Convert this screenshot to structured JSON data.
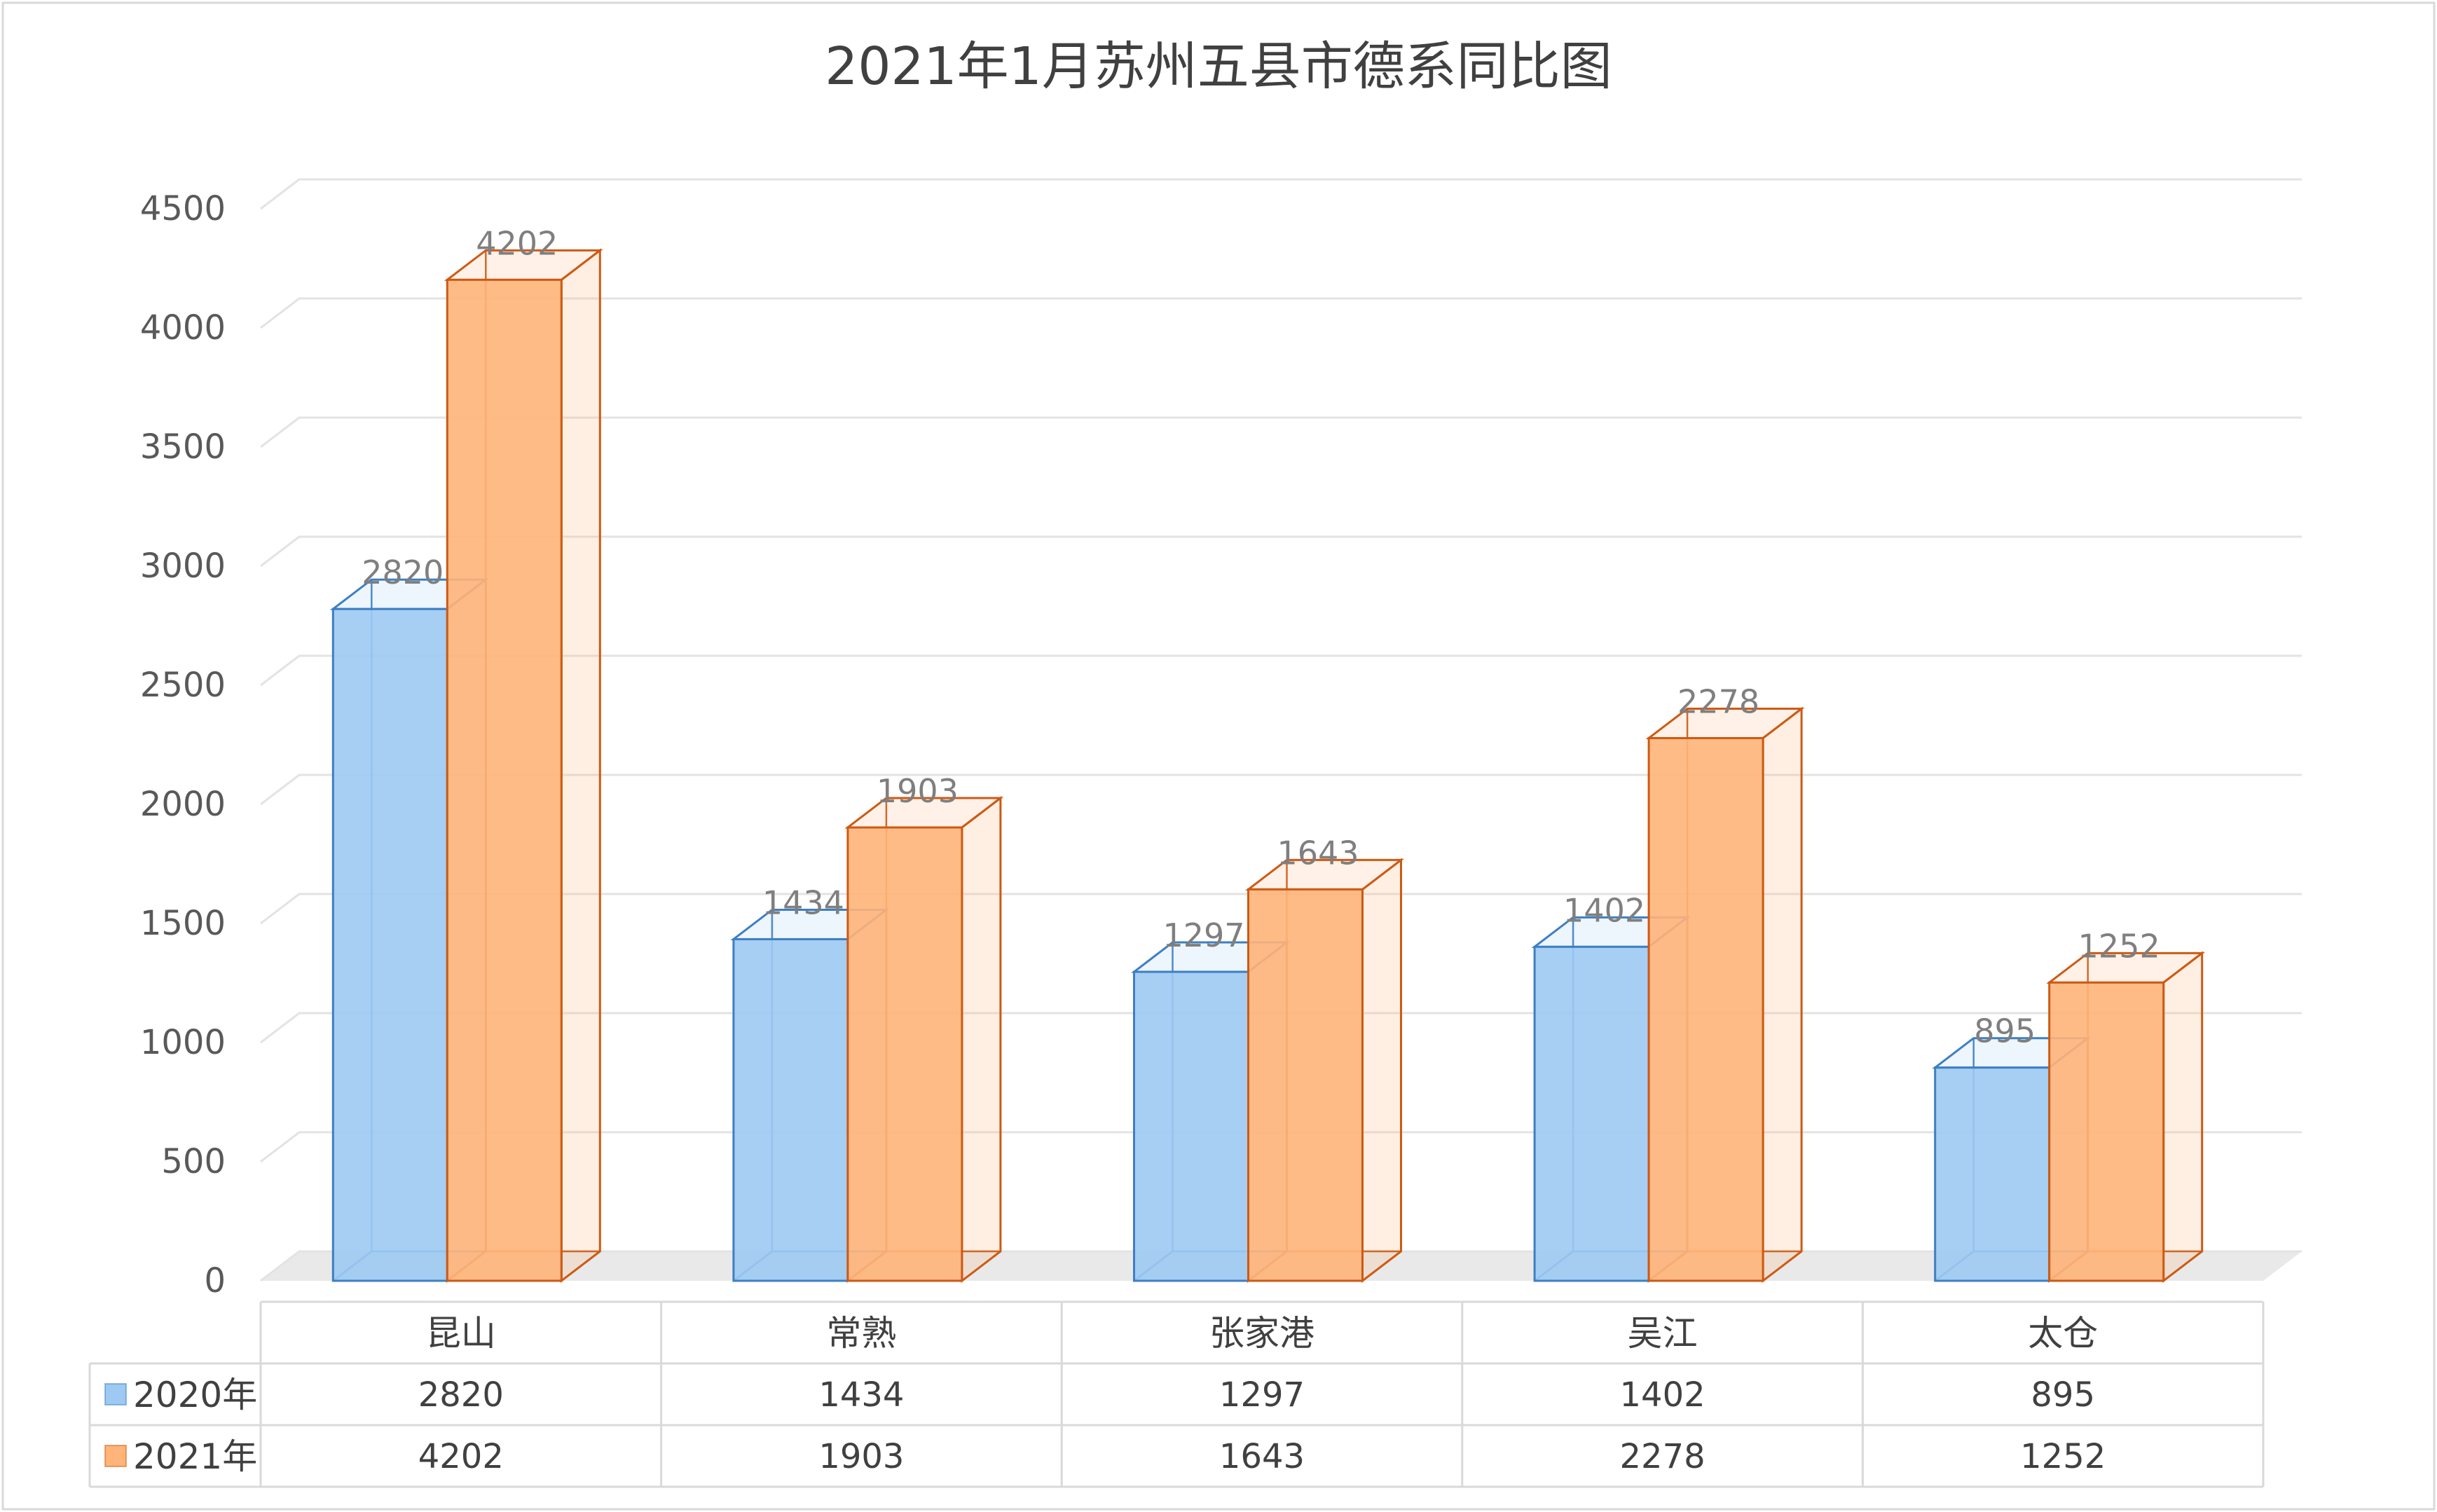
{
  "chart_data": {
    "type": "bar",
    "title": "2021年1月苏州五县市德系同比图",
    "categories": [
      "昆山",
      "常熟",
      "张家港",
      "吴江",
      "太仓"
    ],
    "series": [
      {
        "name": "2020年",
        "values": [
          2820,
          1434,
          1297,
          1402,
          895
        ],
        "color": "#9dc9f2",
        "edge": "#3d7fc3"
      },
      {
        "name": "2021年",
        "values": [
          4202,
          1903,
          1643,
          2278,
          1252
        ],
        "color": "#ffb479",
        "edge": "#cd5a14"
      }
    ],
    "ylim": [
      0,
      4500
    ],
    "yticks": [
      0,
      500,
      1000,
      1500,
      2000,
      2500,
      3000,
      3500,
      4000,
      4500
    ],
    "grid": true,
    "data_labels": true,
    "legend": "data-table",
    "style": "3d-clustered-column"
  }
}
